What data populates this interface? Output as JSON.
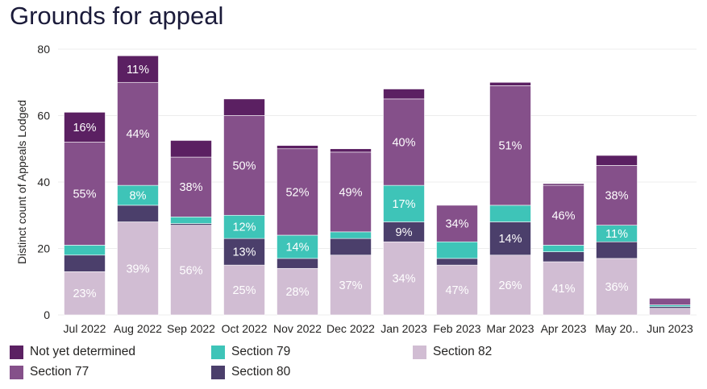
{
  "title": "Grounds for appeal",
  "chart_data": {
    "type": "bar",
    "stacked": true,
    "title": "Grounds for appeal",
    "xlabel": "",
    "ylabel": "Distinct count of Appeals Lodged",
    "ylim": [
      0,
      80
    ],
    "yticks": [
      0,
      20,
      40,
      60,
      80
    ],
    "grid": true,
    "legend_position": "bottom",
    "categories": [
      "Jul 2022",
      "Aug 2022",
      "Sep 2022",
      "Oct 2022",
      "Nov 2022",
      "Dec 2022",
      "Jan 2023",
      "Feb 2023",
      "Mar 2023",
      "Apr 2023",
      "May 20..",
      "Jun 2023"
    ],
    "series": [
      {
        "name": "Section 82",
        "color": "#d1bdd3",
        "values": [
          13,
          28,
          27,
          15,
          14,
          18,
          22,
          15,
          18,
          16,
          17,
          2
        ],
        "labels": [
          "23%",
          "39%",
          "56%",
          "25%",
          "28%",
          "37%",
          "34%",
          "47%",
          "26%",
          "41%",
          "36%",
          ""
        ]
      },
      {
        "name": "Section 80",
        "color": "#4b3f6b",
        "values": [
          5,
          5,
          0.5,
          8,
          3,
          5,
          6,
          2,
          10,
          3,
          5,
          0.5
        ],
        "labels": [
          "",
          "",
          "",
          "13%",
          "",
          "",
          "9%",
          "",
          "14%",
          "",
          "",
          ""
        ]
      },
      {
        "name": "Section 79",
        "color": "#3ec4b8",
        "values": [
          3,
          6,
          2,
          7,
          7,
          2,
          11,
          5,
          5,
          2,
          5,
          0.5
        ],
        "labels": [
          "",
          "8%",
          "",
          "12%",
          "14%",
          "",
          "17%",
          "",
          "",
          "",
          "11%",
          ""
        ]
      },
      {
        "name": "Section 77",
        "color": "#85508a",
        "values": [
          31,
          31,
          18,
          30,
          26,
          24,
          26,
          11,
          36,
          18,
          18,
          2
        ],
        "labels": [
          "55%",
          "44%",
          "38%",
          "50%",
          "52%",
          "49%",
          "40%",
          "34%",
          "51%",
          "46%",
          "38%",
          ""
        ]
      },
      {
        "name": "Not yet determined",
        "color": "#5b2062",
        "values": [
          9,
          8,
          5,
          5,
          1,
          1,
          3,
          0,
          1,
          0.5,
          3,
          0
        ],
        "labels": [
          "16%",
          "11%",
          "",
          "",
          "",
          "",
          "",
          "",
          "",
          "",
          "",
          ""
        ]
      }
    ]
  },
  "legend": [
    {
      "name": "Not yet determined",
      "color": "#5b2062"
    },
    {
      "name": "Section 79",
      "color": "#3ec4b8"
    },
    {
      "name": "Section 82",
      "color": "#d1bdd3"
    },
    {
      "name": "Section 77",
      "color": "#85508a"
    },
    {
      "name": "Section 80",
      "color": "#4b3f6b"
    }
  ]
}
